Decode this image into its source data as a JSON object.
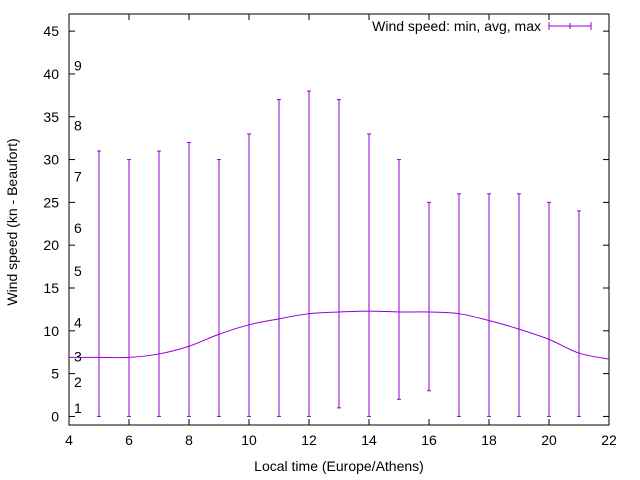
{
  "chart_data": {
    "type": "line",
    "title": "",
    "xlabel": "Local time (Europe/Athens)",
    "ylabel": "Wind speed (kn - Beaufort)",
    "xlim": [
      4,
      22
    ],
    "ylim": [
      -1,
      47
    ],
    "x_ticks": [
      "4",
      "6",
      "8",
      "10",
      "12",
      "14",
      "16",
      "18",
      "20",
      "22"
    ],
    "y_ticks": [
      "0",
      "5",
      "10",
      "15",
      "20",
      "25",
      "30",
      "35",
      "40",
      "45"
    ],
    "beaufort_labels": [
      {
        "label": "1",
        "kn": 1
      },
      {
        "label": "2",
        "kn": 4
      },
      {
        "label": "3",
        "kn": 7
      },
      {
        "label": "4",
        "kn": 11
      },
      {
        "label": "5",
        "kn": 17
      },
      {
        "label": "6",
        "kn": 22
      },
      {
        "label": "7",
        "kn": 28
      },
      {
        "label": "8",
        "kn": 34
      },
      {
        "label": "9",
        "kn": 41
      }
    ],
    "legend": "Wind speed: min, avg, max",
    "legend_position": "top-right",
    "color": "#9400d3",
    "series": [
      {
        "name": "Wind speed: min, avg, max",
        "x": [
          5,
          6,
          7,
          8,
          9,
          10,
          11,
          12,
          13,
          14,
          15,
          16,
          17,
          18,
          19,
          20,
          21
        ],
        "min": [
          0,
          0,
          0,
          0,
          0,
          0,
          0,
          0,
          1,
          0,
          2,
          3,
          0,
          0,
          0,
          0,
          0
        ],
        "max": [
          31,
          30,
          31,
          32,
          30,
          33,
          37,
          38,
          37,
          33,
          30,
          25,
          26,
          26,
          26,
          25,
          24
        ]
      }
    ],
    "avg_curve": {
      "x": [
        4,
        5,
        6,
        7,
        8,
        9,
        10,
        11,
        12,
        13,
        14,
        15,
        16,
        17,
        18,
        19,
        20,
        21,
        22
      ],
      "y": [
        6.9,
        6.9,
        6.9,
        7.3,
        8.2,
        9.6,
        10.7,
        11.4,
        12.0,
        12.2,
        12.3,
        12.2,
        12.2,
        12.0,
        11.2,
        10.2,
        9.0,
        7.4,
        6.7
      ]
    }
  }
}
